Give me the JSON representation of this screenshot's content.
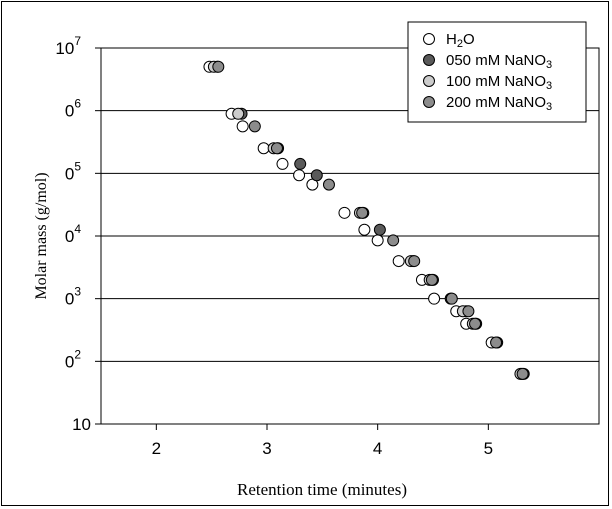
{
  "chart_data": {
    "type": "scatter",
    "xlabel": "Retention time (minutes)",
    "ylabel": "Molar mass (g/mol)",
    "xlim": [
      1.5,
      6.0
    ],
    "x_ticks": [
      "2",
      "3",
      "4",
      "5"
    ],
    "y_ticks": [
      {
        "base": "10",
        "exp": ""
      },
      {
        "base": "0",
        "exp": "2"
      },
      {
        "base": "0",
        "exp": "3"
      },
      {
        "base": "0",
        "exp": "4"
      },
      {
        "base": "0",
        "exp": "5"
      },
      {
        "base": "0",
        "exp": "6"
      },
      {
        "base": "10",
        "exp": "7"
      }
    ],
    "y_scale": "log",
    "ylim_log10": [
      1,
      7
    ],
    "grid": "horizontal",
    "legend_position": "top-right",
    "series": [
      {
        "name": {
          "prefix": "H",
          "sub": "2",
          "suffix": "O"
        },
        "color": "#ffffff",
        "points": [
          [
            2.48,
            6.7
          ],
          [
            2.68,
            5.95
          ],
          [
            2.78,
            5.75
          ],
          [
            2.97,
            5.4
          ],
          [
            3.14,
            5.15
          ],
          [
            3.29,
            4.97
          ],
          [
            3.41,
            4.82
          ],
          [
            3.7,
            4.37
          ],
          [
            3.88,
            4.1
          ],
          [
            4.0,
            3.93
          ],
          [
            4.19,
            3.6
          ],
          [
            4.4,
            3.3
          ],
          [
            4.51,
            3.0
          ],
          [
            4.71,
            2.8
          ],
          [
            4.8,
            2.6
          ],
          [
            5.03,
            2.3
          ],
          [
            5.3,
            1.8
          ]
        ]
      },
      {
        "name": {
          "prefix": "050 mM NaNO",
          "sub": "3",
          "suffix": ""
        },
        "color": "#5a5a5a",
        "points": [
          [
            2.55,
            6.7
          ],
          [
            2.77,
            5.95
          ],
          [
            3.1,
            5.4
          ],
          [
            3.3,
            5.15
          ],
          [
            3.45,
            4.97
          ],
          [
            3.87,
            4.37
          ],
          [
            4.02,
            4.1
          ],
          [
            4.32,
            3.6
          ],
          [
            4.5,
            3.3
          ],
          [
            4.66,
            3.0
          ],
          [
            4.8,
            2.8
          ],
          [
            4.89,
            2.6
          ],
          [
            5.08,
            2.3
          ],
          [
            5.32,
            1.8
          ]
        ]
      },
      {
        "name": {
          "prefix": "100 mM NaNO",
          "sub": "3",
          "suffix": ""
        },
        "color": "#cccccc",
        "points": [
          [
            2.52,
            6.7
          ],
          [
            2.74,
            5.95
          ],
          [
            3.06,
            5.4
          ],
          [
            3.84,
            4.37
          ],
          [
            4.3,
            3.6
          ],
          [
            4.47,
            3.3
          ],
          [
            4.77,
            2.8
          ],
          [
            4.86,
            2.6
          ],
          [
            5.29,
            1.8
          ]
        ]
      },
      {
        "name": {
          "prefix": "200 mM NaNO",
          "sub": "3",
          "suffix": ""
        },
        "color": "#8c8c8c",
        "points": [
          [
            2.56,
            6.7
          ],
          [
            2.89,
            5.75
          ],
          [
            3.09,
            5.4
          ],
          [
            3.56,
            4.82
          ],
          [
            3.86,
            4.37
          ],
          [
            4.14,
            3.93
          ],
          [
            4.33,
            3.6
          ],
          [
            4.49,
            3.3
          ],
          [
            4.67,
            3.0
          ],
          [
            4.82,
            2.8
          ],
          [
            4.88,
            2.6
          ],
          [
            5.07,
            2.3
          ],
          [
            5.31,
            1.8
          ]
        ]
      }
    ]
  }
}
